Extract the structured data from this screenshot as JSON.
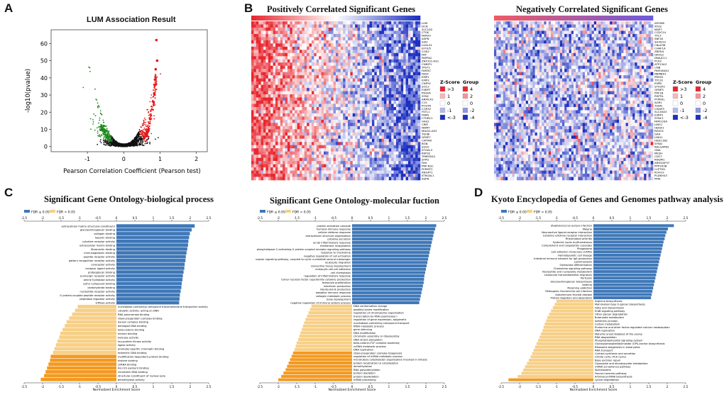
{
  "panels": {
    "A": {
      "letter": "A",
      "title": "LUM Association Result",
      "xlabel": "Pearson Correlation Coefficient (Pearson test)",
      "ylabel": "-log10(pvalue)",
      "xticks": [
        "-1",
        "0",
        "1",
        "2"
      ],
      "yticks": [
        "0",
        "10",
        "20",
        "30",
        "40",
        "50",
        "60"
      ]
    },
    "B": {
      "letter": "B",
      "pos_title": "Positively Correlated Significant Genes",
      "neg_title": "Negatively Correlated Significant Genes",
      "pos_genes": [
        "LUM",
        "DCN",
        "SLC1D2",
        "CTSK",
        "FAM33",
        "ASPN",
        "SIX2",
        "LGALS1",
        "EFOU5",
        "CCN2",
        "FAP",
        "PAPPA2",
        "ZNF331-AS1",
        "CNRIP1",
        "TPST1",
        "FAM3C",
        "FBGT",
        "EMP1",
        "EMP3",
        "CNPY4",
        "SOC2",
        "FXBP7",
        "PDGFA",
        "SYNC",
        "ARMCX1",
        "C1S",
        "POSTN",
        "COPZ2",
        "FSTL1",
        "FIBIN",
        "CTHRC1",
        "OAS2",
        "CRM",
        "NNMT",
        "MAGI2-AS3",
        "TGFBI",
        "GFBP7",
        "CMTM3",
        "BGN",
        "SGCE",
        "STGAL3",
        "REPS2",
        "TMEM204",
        "SFPQ",
        "FAH",
        "PRP-RSC",
        "FERMT2",
        "ANGPT1",
        "ST6GAL1",
        "ASPN"
      ],
      "neg_genes": [
        "APOM8",
        "XYLB",
        "MAP7",
        "CCDC24",
        "TTC3",
        "SBF4S",
        "SH3D19",
        "C8orf38",
        "CHAF1A",
        "ZBED4",
        "GRHL2",
        "DNAJC11",
        "PCK2",
        "ATP13A3",
        "CNB",
        "FAM164A1",
        "NBMBX1",
        "PRSS2",
        "TTC32",
        "ESPB",
        "STX2P2",
        "GFBP3",
        "PRF1B",
        "PHPTA",
        "PTPRXL",
        "AGR1",
        "TSDN",
        "CISAP3",
        "SLC45A3",
        "ESRP1",
        "SYNC1",
        "FAM120A",
        "LIN51",
        "HDGF2",
        "REXO1",
        "GAA",
        "LING1",
        "HSD11B2",
        "SYNJ1",
        "RALGAPB2",
        "GNA",
        "MESH",
        "CDC7",
        "RNQM1",
        "ARHGAP37",
        "PPP1R3B",
        "CLPTM1",
        "ROH13",
        "PLDKH43",
        "PMA"
      ],
      "zscore_title": "Z-Score",
      "zscore_labels": [
        ">3",
        "1",
        "0",
        "-1",
        "<-3"
      ],
      "group_title": "Group",
      "group_labels": [
        "4",
        "2",
        "0",
        "-2",
        "-4"
      ]
    },
    "C1": {
      "letter": "C",
      "title": "Significant Gene Ontology-biological process",
      "legend": [
        "FDR ≤ 0.05",
        "FDR > 0.05"
      ],
      "xlabel": "Normalized Enrichment Score",
      "axis_ticks": [
        "-2.5",
        "-2",
        "-1.5",
        "-1",
        "-0.5",
        "0",
        "0.5",
        "1",
        "1.5",
        "2",
        "2.5"
      ],
      "pos_labels": [
        "extracellular matrix structural constituent",
        "glycosaminoglycan binding",
        "collagen binding",
        "heparin binding",
        "cytokine receptor activity",
        "extracellular matrix binding",
        "fibronectin binding",
        "immunoglobulin binding",
        "peptide receptor activity",
        "pattern recognition receptor activity",
        "coreceptor activity",
        "receptor ligand activity",
        "proteoglycan binding",
        "purinergic receptor activity",
        "amine hydrolase activity",
        "sulfur compound binding",
        "carbohydrate binding",
        "nucleotide receptor activity",
        "G protein-coupled peptide receptor activity",
        "peptidase regulator activity",
        "GTPase activity"
      ],
      "neg_labels": [
        "nucleobase-containing compound transmembrane transporter activity",
        "catalytic activity, acting on DNA",
        "RNA polymerase binding",
        "ribonucleoprotein complex binding",
        "dynein complex binding",
        "damaged DNA binding",
        "beta-catenin binding",
        "kinesin binding",
        "helicase activity",
        "tau-protein kinase activity",
        "ligase activity",
        "promoter-specific chromatin binding",
        "telomeric DNA binding",
        "modification-dependent protein binding",
        "histone binding",
        "snRNA binding",
        "AU-rich element binding",
        "chromatin DNA binding",
        "structural constituent of nuclear pore",
        "demethylase activity"
      ]
    },
    "C2": {
      "title": "Significant Gene Ontology-molecular fuction",
      "legend": [
        "FDR ≤ 0.05",
        "FDR > 0.05"
      ],
      "xlabel": "Normalized Enrichment Score",
      "axis_ticks": [
        "-2.5",
        "-2",
        "-1.5",
        "-1",
        "-0.5",
        "0",
        "0.5",
        "1",
        "1.5",
        "2",
        "2.5"
      ],
      "pos_labels": [
        "protein activation cascade",
        "humoral immune response",
        "cellular defense response",
        "extracellular structure organization",
        "cytokine secretion",
        "acute inflammatory response",
        "membrane invagination",
        "phospholipase C-activating G protein-coupled receptor signaling pathway",
        "response to chemokine",
        "negative regulation of cell activation",
        "G protein-coupled receptor signaling pathway, coupled to cyclic nucleotide second messenger",
        "leukocyte migration",
        "connective tissue development",
        "leukocyte cell-cell adhesion",
        "cell chemotaxis",
        "regulation of inflammatory response",
        "tumor necrosis factor superfamily cytokine production",
        "leukocyte proliferation",
        "interferon production",
        "interleukin-8 production",
        "adaptive immune response",
        "collagen metabolic process",
        "bone development",
        "negative regulation of immune system process"
      ],
      "neg_labels": [
        "DNA conformation change",
        "peptidyl-lysine modification",
        "regulation of chromosome organization",
        "transcription by RNA polymerase I",
        "regulation of gene expression, epigenetic",
        "nucleobase-containing compound transport",
        "tRNA metabolic process",
        "gene silencing",
        "DNA modification",
        "chromatin assembly or disassembly",
        "DNA strand elongation",
        "beta-catenin-TCF complex assembly",
        "ncRNA metabolic process",
        "DNA replication",
        "ribonucleoprotein complex biogenesis",
        "regulation of mRNA metabolic process",
        "microtubule cytoskeleton organization involved in mitosis",
        "protein localization to cytoskeleton",
        "demethylation",
        "RNA polyadenylation",
        "protein depletion",
        "protein dealkylation",
        "mRNA processing"
      ]
    },
    "D": {
      "letter": "D",
      "title": "Kyoto Encyclopedia of Genes and Genomes  pathway analysis",
      "legend": [
        "FDR ≤ 0.05",
        "FDR > 0.05"
      ],
      "xlabel": "Normalized Enrichment Score",
      "axis_ticks": [
        "-2.5",
        "-2",
        "-1.5",
        "-1",
        "-0.5",
        "0",
        "0.5",
        "1",
        "1.5",
        "2",
        "2.5"
      ],
      "pos_labels": [
        "Staphylococcus aureus infection",
        "Malaria",
        "Neuroactive ligand-receptor interaction",
        "Cytokine-cytokine receptor interaction",
        "Rheumatoid arthritis",
        "Systemic lupus erythematosus",
        "Complement and coagulation cascades",
        "Phagosome",
        "Cell adhesion molecules (CAMs)",
        "Hematopoietic cell lineage",
        "Intestinal immune network for IgA production",
        "Leishmaniasis",
        "Osteoclast differentiation",
        "Chemokine signaling pathway",
        "Nucleotide and nucleoside metabolism",
        "Leukocyte transendothelial migration",
        "Pertussis",
        "Glycosaminoglycan biosynthesis",
        "Asthma",
        "Morphine addiction",
        "Pathogenic Escherichia coli infection",
        "Autoimmune thyroid disease",
        "Protein digestion and absorption"
      ],
      "neg_labels": [
        "Arginine biosynthesis",
        "Mammalian type O-glycan biosynthesis",
        "Fatty acid biosynthesis",
        "ErbB signaling pathway",
        "Other glycan degradation",
        "Butanoate metabolism",
        "Adherens junction",
        "Carbon metabolism",
        "Endocrine and other factor-regulated calcium reabsorption",
        "DNA replication",
        "Maturity onset diabetes of the young",
        "RNA degradation",
        "Phosphatidylinositol signaling system",
        "Glycosylphosphatidylinositol (GPI)-anchor biosynthesis",
        "Ribosome biogenesis in eukaryotes",
        "RNA transport",
        "Cortisol synthesis and secretion",
        "Citrate cycle (TCA cycle)",
        "Base excision repair",
        "Glyoxylate and dicarboxylate metabolism",
        "mRNA surveillance pathway",
        "Spliceosome",
        "Fanconi anemia pathway",
        "Aminoacyl-tRNA biosynthesis",
        "Lysine degradation"
      ]
    }
  },
  "colors": {
    "fdr_sig_pos": "#3f78b8",
    "fdr_sig_neg": "#f39a22",
    "fdr_nonsig": "#f7cf86",
    "heat_red": "#e8262e",
    "heat_blue": "#1c2fbf",
    "volcano_pos": "#e21b1b",
    "volcano_neg": "#1f8a1f"
  },
  "chart_data": [
    {
      "type": "scatter",
      "title": "LUM Association Result",
      "xlabel": "Pearson Correlation Coefficient (Pearson test)",
      "ylabel": "-log10(pvalue)",
      "xlim": [
        -2,
        2.3
      ],
      "ylim": [
        -3,
        68
      ],
      "highlight_points": [
        {
          "x": 0.9,
          "y": 62
        },
        {
          "x": 0.92,
          "y": 50
        },
        {
          "x": 0.88,
          "y": 45
        },
        {
          "x": 0.86,
          "y": 39
        },
        {
          "x": 0.85,
          "y": 36
        },
        {
          "x": 0.84,
          "y": 31
        },
        {
          "x": 0.82,
          "y": 26
        },
        {
          "x": -0.55,
          "y": 12
        },
        {
          "x": -0.6,
          "y": 10
        }
      ]
    },
    {
      "type": "heatmap",
      "title": "Positively Correlated Significant Genes",
      "rows": 50,
      "zscore_range": [
        -3,
        3
      ]
    },
    {
      "type": "heatmap",
      "title": "Negatively Correlated Significant Genes",
      "rows": 50,
      "zscore_range": [
        -3,
        3
      ]
    },
    {
      "type": "bar",
      "title": "Significant Gene Ontology-biological process",
      "xlabel": "Normalized Enrichment Score",
      "xlim": [
        -2.5,
        2.5
      ],
      "pos_values": [
        2.12,
        2.04,
        1.99,
        1.97,
        1.95,
        1.94,
        1.92,
        1.9,
        1.88,
        1.87,
        1.85,
        1.84,
        1.82,
        1.8,
        1.79,
        1.77,
        1.76,
        1.74,
        1.72,
        1.71,
        1.7
      ],
      "neg_values": [
        -1.05,
        -1.12,
        -1.2,
        -1.28,
        -1.35,
        -1.4,
        -1.46,
        -1.52,
        -1.55,
        -1.6,
        -1.64,
        -1.68,
        -1.72,
        -1.78,
        -1.8,
        -1.84,
        -1.88,
        -1.92,
        -1.96,
        -2.05
      ],
      "neg_sig_count": 7
    },
    {
      "type": "bar",
      "title": "Significant Gene Ontology-molecular fuction",
      "xlabel": "Normalized Enrichment Score",
      "xlim": [
        -2.5,
        2.5
      ],
      "pos_values": [
        2.28,
        2.25,
        2.22,
        2.2,
        2.18,
        2.16,
        2.14,
        2.12,
        2.1,
        2.08,
        2.06,
        2.04,
        2.02,
        2.0,
        1.98,
        1.96,
        1.95,
        1.94,
        1.92,
        1.9,
        1.88,
        1.86,
        1.84,
        1.82
      ],
      "neg_values": [
        -1.1,
        -1.14,
        -1.18,
        -1.22,
        -1.26,
        -1.3,
        -1.33,
        -1.36,
        -1.4,
        -1.43,
        -1.46,
        -1.5,
        -1.53,
        -1.56,
        -1.6,
        -1.64,
        -1.68,
        -1.72,
        -1.76,
        -1.8,
        -1.86,
        -1.92,
        -2.0
      ],
      "neg_sig_count": 9
    },
    {
      "type": "bar",
      "title": "Kyoto Encyclopedia of Genes and Genomes  pathway analysis",
      "xlabel": "Normalized Enrichment Score",
      "xlim": [
        -2.5,
        2.5
      ],
      "pos_values": [
        2.18,
        2.02,
        1.98,
        1.95,
        1.93,
        1.9,
        1.88,
        1.86,
        1.84,
        1.82,
        1.8,
        1.78,
        1.76,
        1.74,
        1.72,
        1.7,
        1.68,
        1.66,
        1.64,
        1.62,
        1.6,
        1.58,
        1.56
      ],
      "neg_values": [
        -1.0,
        -1.05,
        -1.1,
        -1.15,
        -1.2,
        -1.25,
        -1.28,
        -1.32,
        -1.35,
        -1.38,
        -1.42,
        -1.46,
        -1.5,
        -1.54,
        -1.58,
        -1.62,
        -1.66,
        -1.7,
        -1.75,
        -1.8,
        -1.85,
        -1.9,
        -1.95,
        -2.05,
        -2.3
      ],
      "neg_sig_count": 1
    }
  ]
}
